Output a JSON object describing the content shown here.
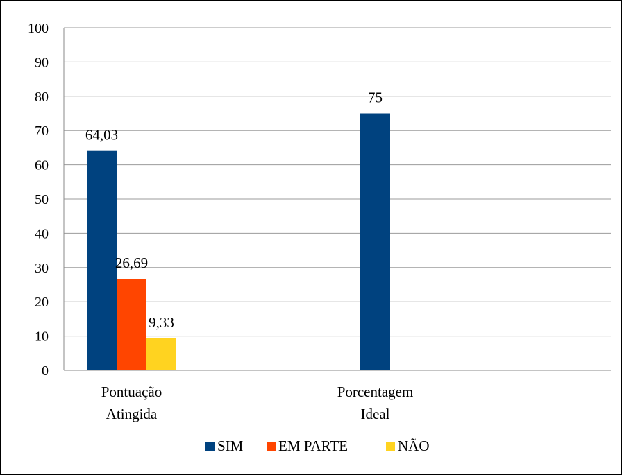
{
  "chart_data": {
    "type": "bar",
    "categories": [
      [
        "Pontuação",
        "Atingida"
      ],
      [
        "Porcentagem",
        "Ideal"
      ]
    ],
    "series": [
      {
        "name": "SIM",
        "color": "#00427f",
        "values": [
          64.03,
          75
        ],
        "labels": [
          "64,03",
          "75"
        ]
      },
      {
        "name": "EM PARTE",
        "color": "#ff4500",
        "values": [
          26.69,
          null
        ],
        "labels": [
          "26,69",
          ""
        ]
      },
      {
        "name": "NÃO",
        "color": "#ffd320",
        "values": [
          9.33,
          null
        ],
        "labels": [
          "9,33",
          ""
        ]
      }
    ],
    "ylim": [
      0,
      100
    ],
    "yticks": [
      0,
      10,
      20,
      30,
      40,
      50,
      60,
      70,
      80,
      90,
      100
    ],
    "grid": true,
    "legend": "bottom",
    "title": "",
    "xlabel": "",
    "ylabel": ""
  }
}
